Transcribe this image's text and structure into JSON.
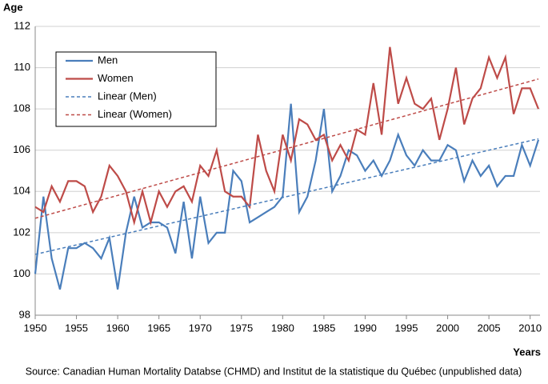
{
  "chart_data": {
    "type": "line",
    "y_label": "Age",
    "x_label": "Years",
    "source": "Source: Canadian Human Mortality Databse (CHMD) and Institut de la statistique du Québec (unpublished data)",
    "x": [
      1950,
      1951,
      1952,
      1953,
      1954,
      1955,
      1956,
      1957,
      1958,
      1959,
      1960,
      1961,
      1962,
      1963,
      1964,
      1965,
      1966,
      1967,
      1968,
      1969,
      1970,
      1971,
      1972,
      1973,
      1974,
      1975,
      1976,
      1977,
      1978,
      1979,
      1980,
      1981,
      1982,
      1983,
      1984,
      1985,
      1986,
      1987,
      1988,
      1989,
      1990,
      1991,
      1992,
      1993,
      1994,
      1995,
      1996,
      1997,
      1998,
      1999,
      2000,
      2001,
      2002,
      2003,
      2004,
      2005,
      2006,
      2007,
      2008,
      2009,
      2010,
      2011
    ],
    "series": [
      {
        "name": "Men",
        "color": "#4a7ebb",
        "dashed": false,
        "values": [
          100,
          103.75,
          100.75,
          99.25,
          101.25,
          101.25,
          101.5,
          101.25,
          100.75,
          101.75,
          99.25,
          102,
          103.75,
          102.25,
          102.5,
          102.5,
          102.25,
          101,
          103.5,
          100.75,
          103.75,
          101.5,
          102,
          102,
          105,
          104.5,
          102.5,
          102.75,
          103,
          103.25,
          103.75,
          108.25,
          103,
          103.75,
          105.5,
          108,
          104,
          104.75,
          106,
          105.75,
          105,
          105.5,
          104.75,
          105.5,
          106.75,
          105.75,
          105.25,
          106,
          105.5,
          105.5,
          106.25,
          106,
          104.5,
          105.5,
          104.75,
          105.25,
          104.25,
          104.75,
          104.75,
          106.25,
          105.25,
          106.5
        ]
      },
      {
        "name": "Women",
        "color": "#be4b48",
        "dashed": false,
        "values": [
          103.25,
          103,
          104.25,
          103.5,
          104.5,
          104.5,
          104.25,
          103,
          103.75,
          105.25,
          104.75,
          104,
          102.5,
          104,
          102.5,
          104,
          103.25,
          104,
          104.25,
          103.5,
          105.25,
          104.75,
          106,
          104,
          103.75,
          103.75,
          103.25,
          106.75,
          105,
          104,
          106.75,
          105.5,
          107.5,
          107.25,
          106.5,
          106.75,
          105.5,
          106.25,
          105.5,
          107,
          106.75,
          109.25,
          106.75,
          111,
          108.25,
          109.5,
          108.25,
          108,
          108.5,
          106.5,
          108,
          110,
          107.25,
          108.5,
          109,
          110.5,
          109.5,
          110.5,
          107.75,
          109,
          109,
          108
        ]
      },
      {
        "name": "Linear (Men)",
        "color": "#4a7ebb",
        "dashed": true,
        "x": [
          1950,
          2011
        ],
        "values": [
          100.95,
          106.55
        ]
      },
      {
        "name": "Linear (Women)",
        "color": "#be4b48",
        "dashed": true,
        "x": [
          1950,
          2011
        ],
        "values": [
          102.7,
          109.45
        ]
      }
    ],
    "xlim": [
      1950,
      2011
    ],
    "xticks": [
      1950,
      1955,
      1960,
      1965,
      1970,
      1975,
      1980,
      1985,
      1990,
      1995,
      2000,
      2005,
      2010
    ],
    "ylim": [
      98,
      112
    ],
    "yticks": [
      98,
      100,
      102,
      104,
      106,
      108,
      110,
      112
    ],
    "grid": true,
    "legend": "top-left"
  }
}
